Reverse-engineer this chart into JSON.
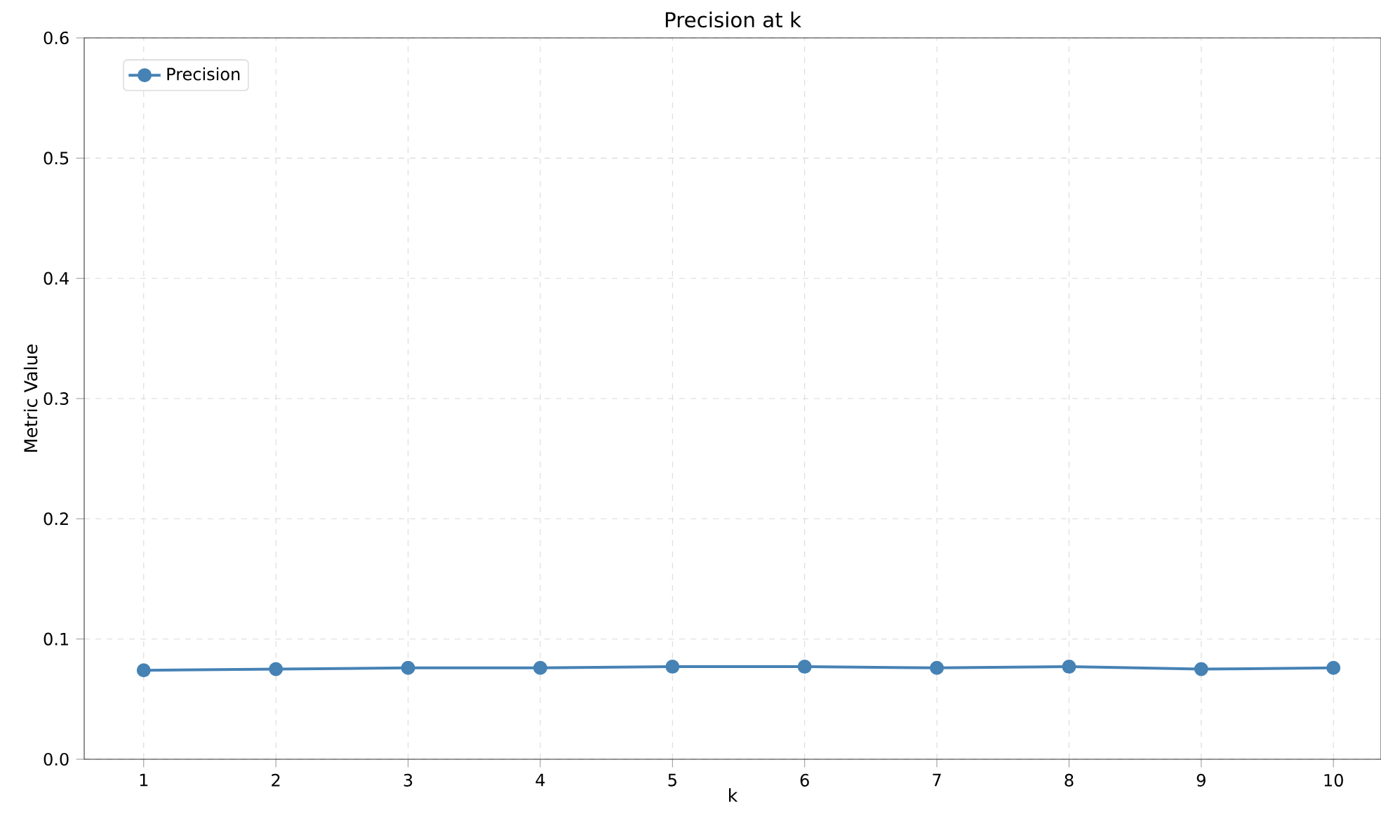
{
  "chart_data": {
    "type": "line",
    "title": "Precision at k",
    "xlabel": "k",
    "ylabel": "Metric Value",
    "x": [
      1,
      2,
      3,
      4,
      5,
      6,
      7,
      8,
      9,
      10
    ],
    "series": [
      {
        "name": "Precision",
        "color": "#4682b4",
        "values": [
          0.074,
          0.075,
          0.076,
          0.076,
          0.077,
          0.077,
          0.076,
          0.077,
          0.075,
          0.076
        ]
      }
    ],
    "xlim": [
      0.55,
      10.36
    ],
    "xticks": [
      1,
      2,
      3,
      4,
      5,
      6,
      7,
      8,
      9,
      10
    ],
    "ylim": [
      0,
      0.6
    ],
    "yticks": [
      {
        "value": 0,
        "label": "0.0"
      },
      0.1,
      0.2,
      0.3,
      0.4,
      0.5,
      0.6
    ],
    "grid": true,
    "legend": "top left",
    "marker": "circle",
    "line_style": "solid"
  }
}
